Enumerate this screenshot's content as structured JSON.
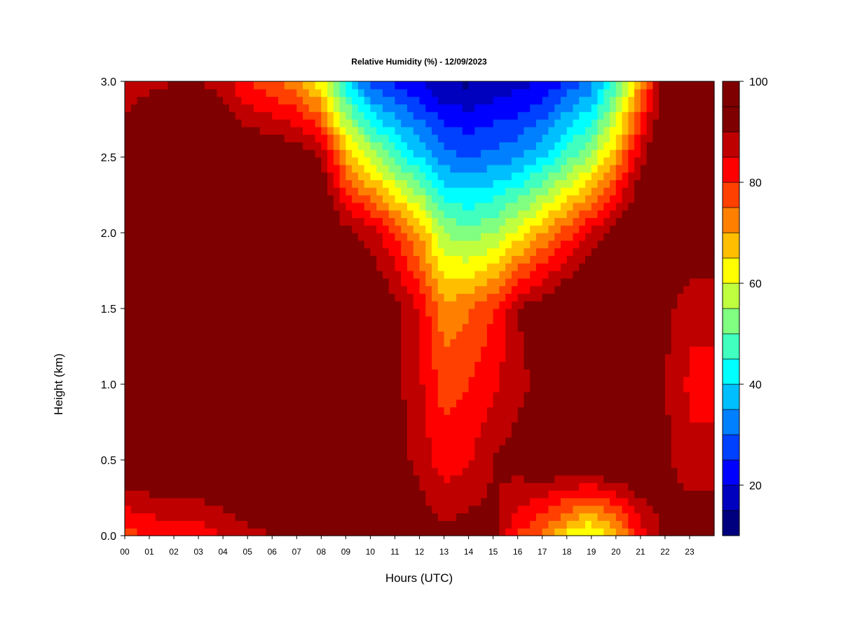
{
  "chart_data": {
    "type": "heatmap",
    "title": "Relative Humidity (%) - 12/09/2023",
    "xlabel": "Hours (UTC)",
    "ylabel": "Height (km)",
    "x_ticks": [
      "00",
      "01",
      "02",
      "03",
      "04",
      "05",
      "06",
      "07",
      "08",
      "09",
      "10",
      "11",
      "12",
      "13",
      "14",
      "15",
      "16",
      "17",
      "18",
      "19",
      "20",
      "21",
      "22",
      "23"
    ],
    "y_ticks": [
      "0.0",
      "0.5",
      "1.0",
      "1.5",
      "2.0",
      "2.5",
      "3.0"
    ],
    "xlim": [
      0,
      24
    ],
    "ylim": [
      0,
      3
    ],
    "colorbar": {
      "min": 10,
      "max": 100,
      "step": 5,
      "tick_values": [
        20,
        40,
        60,
        80,
        100
      ],
      "tick_labels": [
        "20",
        "40",
        "60",
        "80",
        "100"
      ],
      "colors": [
        "#00007F",
        "#0000BF",
        "#0000FF",
        "#0040FF",
        "#0080FF",
        "#00BFFF",
        "#00FFFF",
        "#40FFBF",
        "#80FF80",
        "#BFFF40",
        "#FFFF00",
        "#FFBF00",
        "#FF8000",
        "#FF4000",
        "#FF0000",
        "#BF0000",
        "#7F0000",
        "#7F0000"
      ]
    },
    "hours": [
      0,
      1,
      2,
      3,
      4,
      5,
      6,
      7,
      8,
      9,
      10,
      11,
      12,
      13,
      14,
      15,
      16,
      17,
      18,
      19,
      20,
      21,
      22,
      23
    ],
    "heights_km": [
      0.0,
      0.5,
      1.0,
      1.5,
      2.0,
      2.5,
      3.0
    ],
    "rh_grid": [
      [
        78,
        97,
        100,
        100,
        100,
        93,
        88
      ],
      [
        80,
        98,
        100,
        100,
        100,
        95,
        89
      ],
      [
        82,
        98,
        100,
        100,
        100,
        97,
        90
      ],
      [
        82,
        99,
        100,
        100,
        100,
        99,
        91
      ],
      [
        85,
        100,
        100,
        100,
        100,
        99,
        87
      ],
      [
        88,
        100,
        100,
        100,
        100,
        97,
        80
      ],
      [
        90,
        100,
        100,
        100,
        100,
        96,
        76
      ],
      [
        92,
        100,
        100,
        100,
        100,
        95,
        72
      ],
      [
        94,
        100,
        100,
        100,
        99,
        90,
        62
      ],
      [
        95,
        100,
        100,
        100,
        92,
        70,
        42
      ],
      [
        96,
        97,
        97,
        98,
        88,
        58,
        28
      ],
      [
        96,
        93,
        92,
        92,
        80,
        48,
        24
      ],
      [
        94,
        88,
        86,
        84,
        70,
        40,
        20
      ],
      [
        92,
        82,
        78,
        72,
        55,
        32,
        15
      ],
      [
        93,
        84,
        80,
        74,
        52,
        30,
        14
      ],
      [
        92,
        90,
        84,
        80,
        55,
        32,
        16
      ],
      [
        80,
        93,
        88,
        90,
        62,
        34,
        18
      ],
      [
        74,
        96,
        92,
        94,
        70,
        40,
        20
      ],
      [
        64,
        98,
        96,
        98,
        78,
        48,
        26
      ],
      [
        58,
        98,
        98,
        100,
        86,
        56,
        32
      ],
      [
        68,
        99,
        99,
        100,
        94,
        70,
        48
      ],
      [
        82,
        99,
        99,
        99,
        99,
        88,
        70
      ],
      [
        92,
        92,
        90,
        92,
        98,
        100,
        94
      ],
      [
        96,
        86,
        84,
        86,
        96,
        100,
        99
      ]
    ]
  }
}
